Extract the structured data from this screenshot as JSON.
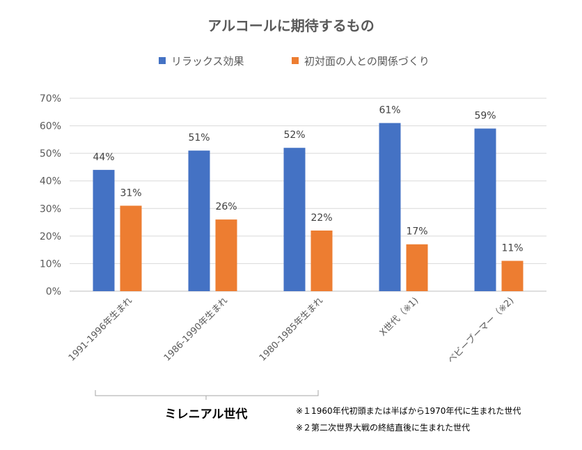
{
  "chart_data": {
    "type": "bar",
    "title": "アルコールに期待するもの",
    "categories": [
      "1991-1996年生まれ",
      "1986-1990年生まれ",
      "1980-1985年生まれ",
      "X世代（※1)",
      "ベビーブーマー（※2)"
    ],
    "series": [
      {
        "name": "リラックス効果",
        "values": [
          44,
          51,
          52,
          61,
          59
        ],
        "color": "#4472C4"
      },
      {
        "name": "初対面の人との関係づくり",
        "values": [
          31,
          26,
          22,
          17,
          11
        ],
        "color": "#ED7D31"
      }
    ],
    "ylim": [
      0,
      70
    ],
    "yticks": [
      "0%",
      "10%",
      "20%",
      "30%",
      "40%",
      "50%",
      "60%",
      "70%"
    ],
    "value_suffix": "%",
    "grid": true,
    "legend": "top",
    "group_label": "ミレニアル世代",
    "notes": [
      "※１1960年代初頭または半ばから1970年代に生まれた世代",
      "※２第二次世界大戦の終結直後に生まれた世代"
    ]
  }
}
